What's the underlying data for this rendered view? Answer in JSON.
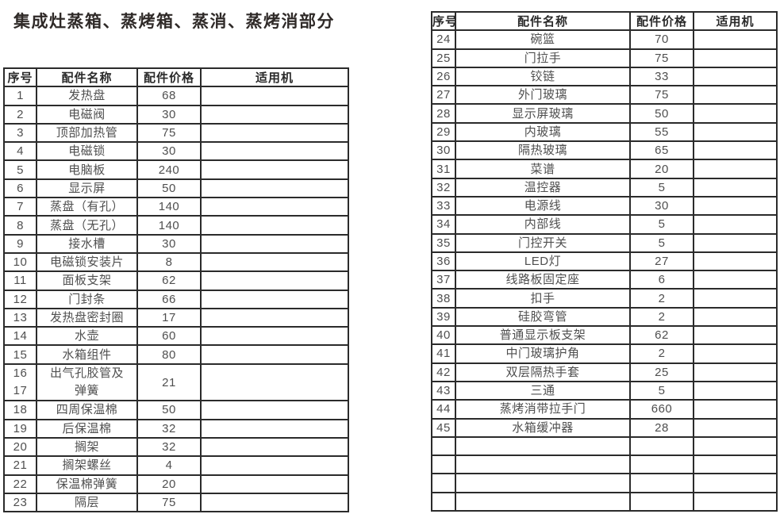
{
  "title": "集成灶蒸箱、蒸烤箱、蒸消、蒸烤消部分",
  "left_table": {
    "headers": [
      "序号",
      "配件名称",
      "配件价格",
      "适用机"
    ],
    "rows": [
      {
        "no": "1",
        "name": "发热盘",
        "price": "68",
        "machine": ""
      },
      {
        "no": "2",
        "name": "电磁阀",
        "price": "30",
        "machine": ""
      },
      {
        "no": "3",
        "name": "顶部加热管",
        "price": "75",
        "machine": ""
      },
      {
        "no": "4",
        "name": "电磁锁",
        "price": "30",
        "machine": ""
      },
      {
        "no": "5",
        "name": "电脑板",
        "price": "240",
        "machine": ""
      },
      {
        "no": "6",
        "name": "显示屏",
        "price": "50",
        "machine": ""
      },
      {
        "no": "7",
        "name": "蒸盘（有孔）",
        "price": "140",
        "machine": ""
      },
      {
        "no": "8",
        "name": "蒸盘（无孔）",
        "price": "140",
        "machine": ""
      },
      {
        "no": "9",
        "name": "接水槽",
        "price": "30",
        "machine": ""
      },
      {
        "no": "10",
        "name": "电磁锁安装片",
        "price": "8",
        "machine": ""
      },
      {
        "no": "11",
        "name": "面板支架",
        "price": "62",
        "machine": ""
      },
      {
        "no": "12",
        "name": "门封条",
        "price": "66",
        "machine": ""
      },
      {
        "no": "13",
        "name": "发热盘密封圈",
        "price": "17",
        "machine": ""
      },
      {
        "no": "14",
        "name": "水壶",
        "price": "60",
        "machine": ""
      },
      {
        "no": "15",
        "name": "水箱组件",
        "price": "80",
        "machine": ""
      },
      {
        "no": [
          "16",
          "17"
        ],
        "name": [
          "出气孔胶管及",
          "弹簧"
        ],
        "price": "21",
        "machine": "",
        "tall": true
      },
      {
        "no": "18",
        "name": "四周保温棉",
        "price": "50",
        "machine": ""
      },
      {
        "no": "19",
        "name": "后保温棉",
        "price": "32",
        "machine": ""
      },
      {
        "no": "20",
        "name": "搁架",
        "price": "32",
        "machine": ""
      },
      {
        "no": "21",
        "name": "搁架螺丝",
        "price": "4",
        "machine": ""
      },
      {
        "no": "22",
        "name": "保温棉弹簧",
        "price": "20",
        "machine": ""
      },
      {
        "no": "23",
        "name": "隔层",
        "price": "75",
        "machine": ""
      }
    ]
  },
  "right_table": {
    "headers": [
      "序号",
      "配件名称",
      "配件价格",
      "适用机"
    ],
    "rows": [
      {
        "no": "24",
        "name": "碗篮",
        "price": "70",
        "machine": ""
      },
      {
        "no": "25",
        "name": "门拉手",
        "price": "75",
        "machine": ""
      },
      {
        "no": "26",
        "name": "铰链",
        "price": "33",
        "machine": ""
      },
      {
        "no": "27",
        "name": "外门玻璃",
        "price": "75",
        "machine": ""
      },
      {
        "no": "28",
        "name": "显示屏玻璃",
        "price": "50",
        "machine": ""
      },
      {
        "no": "29",
        "name": "内玻璃",
        "price": "55",
        "machine": ""
      },
      {
        "no": "30",
        "name": "隔热玻璃",
        "price": "65",
        "machine": ""
      },
      {
        "no": "31",
        "name": "菜谱",
        "price": "20",
        "machine": ""
      },
      {
        "no": "32",
        "name": "温控器",
        "price": "5",
        "machine": ""
      },
      {
        "no": "33",
        "name": "电源线",
        "price": "30",
        "machine": ""
      },
      {
        "no": "34",
        "name": "内部线",
        "price": "5",
        "machine": ""
      },
      {
        "no": "35",
        "name": "门控开关",
        "price": "5",
        "machine": ""
      },
      {
        "no": "36",
        "name": "LED灯",
        "price": "27",
        "machine": ""
      },
      {
        "no": "37",
        "name": "线路板固定座",
        "price": "6",
        "machine": ""
      },
      {
        "no": "38",
        "name": "扣手",
        "price": "2",
        "machine": ""
      },
      {
        "no": "39",
        "name": "硅胶弯管",
        "price": "2",
        "machine": ""
      },
      {
        "no": "40",
        "name": "普通显示板支架",
        "price": "62",
        "machine": ""
      },
      {
        "no": "41",
        "name": "中门玻璃护角",
        "price": "2",
        "machine": ""
      },
      {
        "no": "42",
        "name": "双层隔热手套",
        "price": "25",
        "machine": ""
      },
      {
        "no": "43",
        "name": "三通",
        "price": "5",
        "machine": ""
      },
      {
        "no": "44",
        "name": "蒸烤消带拉手门",
        "price": "660",
        "machine": ""
      },
      {
        "no": "45",
        "name": "水箱缓冲器",
        "price": "28",
        "machine": ""
      },
      {
        "no": "",
        "name": "",
        "price": "",
        "machine": ""
      },
      {
        "no": "",
        "name": "",
        "price": "",
        "machine": ""
      },
      {
        "no": "",
        "name": "",
        "price": "",
        "machine": ""
      },
      {
        "no": "",
        "name": "",
        "price": "",
        "machine": ""
      }
    ]
  }
}
